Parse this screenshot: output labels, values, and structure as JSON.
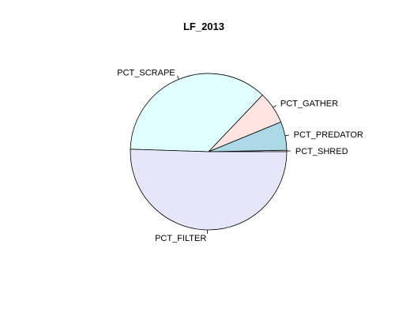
{
  "chart_data": {
    "type": "pie",
    "title": "LF_2013",
    "start_angle_deg": 0,
    "direction": "counterclockwise",
    "slices": [
      {
        "label": "PCT_SHRED",
        "value": 0.3,
        "color": "#ffffff"
      },
      {
        "label": "PCT_PREDATOR",
        "value": 5.9,
        "color": "#add8e6"
      },
      {
        "label": "PCT_GATHER",
        "value": 6.7,
        "color": "#ffe4e1"
      },
      {
        "label": "PCT_SCRAPE",
        "value": 36.6,
        "color": "#e0ffff"
      },
      {
        "label": "PCT_FILTER",
        "value": 50.5,
        "color": "#e6e6fa"
      }
    ]
  }
}
